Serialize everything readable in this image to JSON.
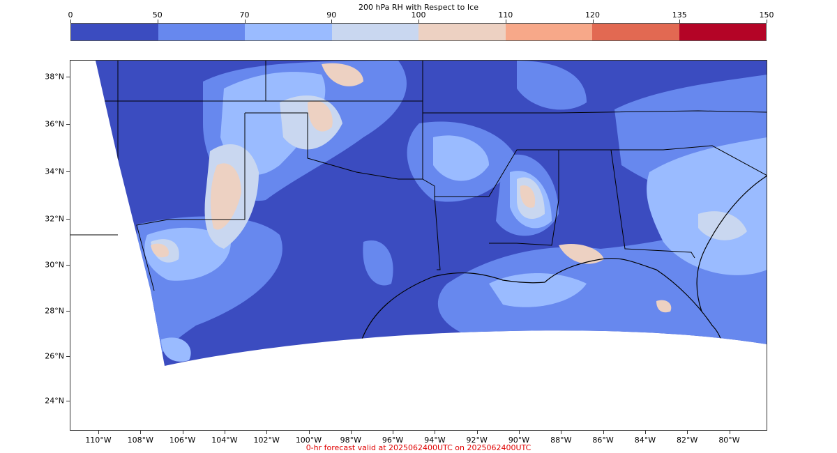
{
  "colorbar": {
    "title": "200 hPa RH with Respect to Ice",
    "ticks": [
      "0",
      "50",
      "70",
      "90",
      "100",
      "110",
      "120",
      "135",
      "150"
    ],
    "colors": [
      "#3b4cc0",
      "#6788ee",
      "#9abbff",
      "#c9d7f0",
      "#edd1c2",
      "#f7a889",
      "#e26952",
      "#b40426"
    ]
  },
  "map": {
    "lat_labels": [
      "38°N",
      "36°N",
      "34°N",
      "32°N",
      "30°N",
      "28°N",
      "26°N",
      "24°N"
    ],
    "lon_labels": [
      "110°W",
      "108°W",
      "106°W",
      "104°W",
      "102°W",
      "100°W",
      "98°W",
      "96°W",
      "94°W",
      "92°W",
      "90°W",
      "88°W",
      "86°W",
      "84°W",
      "82°W",
      "80°W"
    ]
  },
  "footer": "0-hr forecast valid at 2025062400UTC on 2025062400UTC"
}
